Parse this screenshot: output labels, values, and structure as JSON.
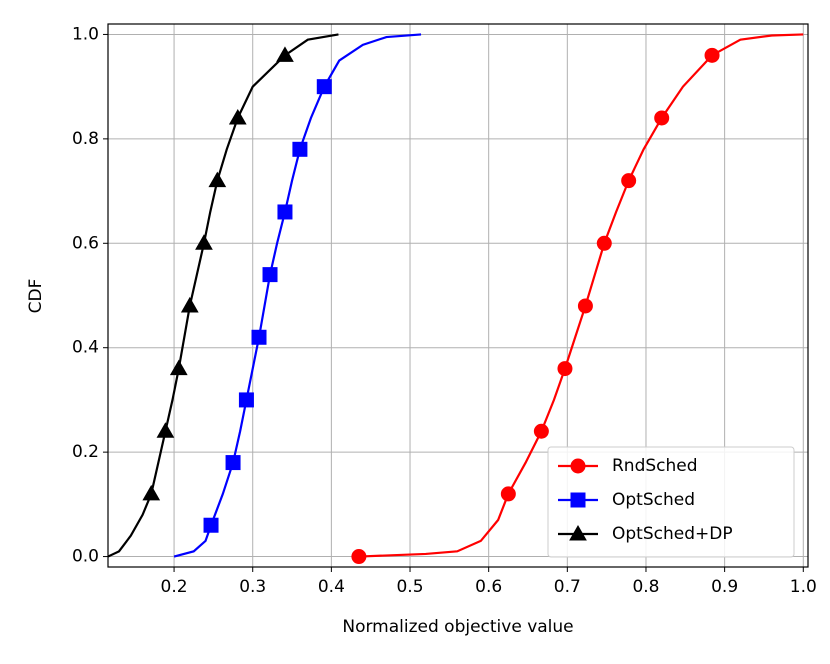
{
  "chart_data": {
    "type": "line",
    "xlabel": "Normalized objective value",
    "ylabel": "CDF",
    "xlim": [
      0.116,
      1.006
    ],
    "ylim": [
      -0.02,
      1.02
    ],
    "xticks": [
      0.2,
      0.3,
      0.4,
      0.5,
      0.6,
      0.7,
      0.8,
      0.9,
      {
        "value": 1,
        "label": "1.0"
      }
    ],
    "yticks": [
      {
        "value": 0,
        "label": "0.0"
      },
      0.2,
      0.4,
      0.6,
      0.8,
      {
        "value": 1,
        "label": "1.0"
      }
    ],
    "grid": true,
    "legend": "lower right",
    "series": [
      {
        "name": "RndSched",
        "color": "#ff0000",
        "marker": "circle",
        "x": [
          0.435,
          0.52,
          0.56,
          0.59,
          0.612,
          0.625,
          0.647,
          0.667,
          0.683,
          0.697,
          0.71,
          0.723,
          0.735,
          0.747,
          0.762,
          0.778,
          0.797,
          0.82,
          0.847,
          0.884,
          0.92,
          0.96,
          1.0
        ],
        "values": [
          0,
          0.005,
          0.01,
          0.03,
          0.07,
          0.12,
          0.18,
          0.24,
          0.3,
          0.36,
          0.42,
          0.48,
          0.54,
          0.6,
          0.66,
          0.72,
          0.78,
          0.84,
          0.9,
          0.96,
          0.99,
          0.998,
          1.0
        ],
        "markevery": [
          0,
          5,
          7,
          9,
          11,
          13,
          15,
          17,
          19
        ]
      },
      {
        "name": "OptSched",
        "color": "#0000ff",
        "marker": "square",
        "x": [
          0.2,
          0.225,
          0.24,
          0.247,
          0.262,
          0.275,
          0.284,
          0.292,
          0.3,
          0.308,
          0.315,
          0.322,
          0.331,
          0.341,
          0.35,
          0.36,
          0.374,
          0.391,
          0.41,
          0.44,
          0.47,
          0.514
        ],
        "values": [
          0,
          0.01,
          0.03,
          0.06,
          0.12,
          0.18,
          0.24,
          0.3,
          0.36,
          0.42,
          0.48,
          0.54,
          0.6,
          0.66,
          0.72,
          0.78,
          0.84,
          0.9,
          0.95,
          0.98,
          0.995,
          1.0
        ],
        "markevery": [
          3,
          5,
          7,
          9,
          11,
          13,
          15,
          17
        ]
      },
      {
        "name": "OptSched+DP",
        "color": "#000000",
        "marker": "triangle",
        "x": [
          0.116,
          0.13,
          0.145,
          0.16,
          0.171,
          0.18,
          0.189,
          0.198,
          0.206,
          0.213,
          0.22,
          0.229,
          0.238,
          0.246,
          0.255,
          0.267,
          0.281,
          0.3,
          0.341,
          0.37,
          0.409
        ],
        "values": [
          0,
          0.01,
          0.04,
          0.08,
          0.12,
          0.18,
          0.24,
          0.3,
          0.36,
          0.42,
          0.48,
          0.54,
          0.6,
          0.66,
          0.72,
          0.78,
          0.84,
          0.9,
          0.96,
          0.99,
          1.0
        ],
        "markevery": [
          4,
          6,
          8,
          10,
          12,
          14,
          16,
          18
        ]
      }
    ]
  }
}
